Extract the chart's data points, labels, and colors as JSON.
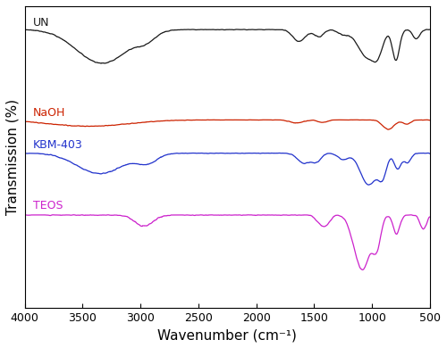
{
  "xlabel": "Wavenumber (cm⁻¹)",
  "ylabel": "Transmission (%)",
  "xlim": [
    4000,
    500
  ],
  "x_ticks": [
    4000,
    3500,
    3000,
    2500,
    2000,
    1500,
    1000,
    500
  ],
  "spectra": {
    "UN": {
      "color": "#1a1a1a",
      "label": "UN"
    },
    "NaOH": {
      "color": "#cc2200",
      "label": "NaOH"
    },
    "KBM403": {
      "color": "#2233cc",
      "label": "KBM-403"
    },
    "TEOS": {
      "color": "#cc22cc",
      "label": "TEOS"
    }
  },
  "label_fontsize": 9,
  "axis_fontsize": 11,
  "tick_fontsize": 9
}
